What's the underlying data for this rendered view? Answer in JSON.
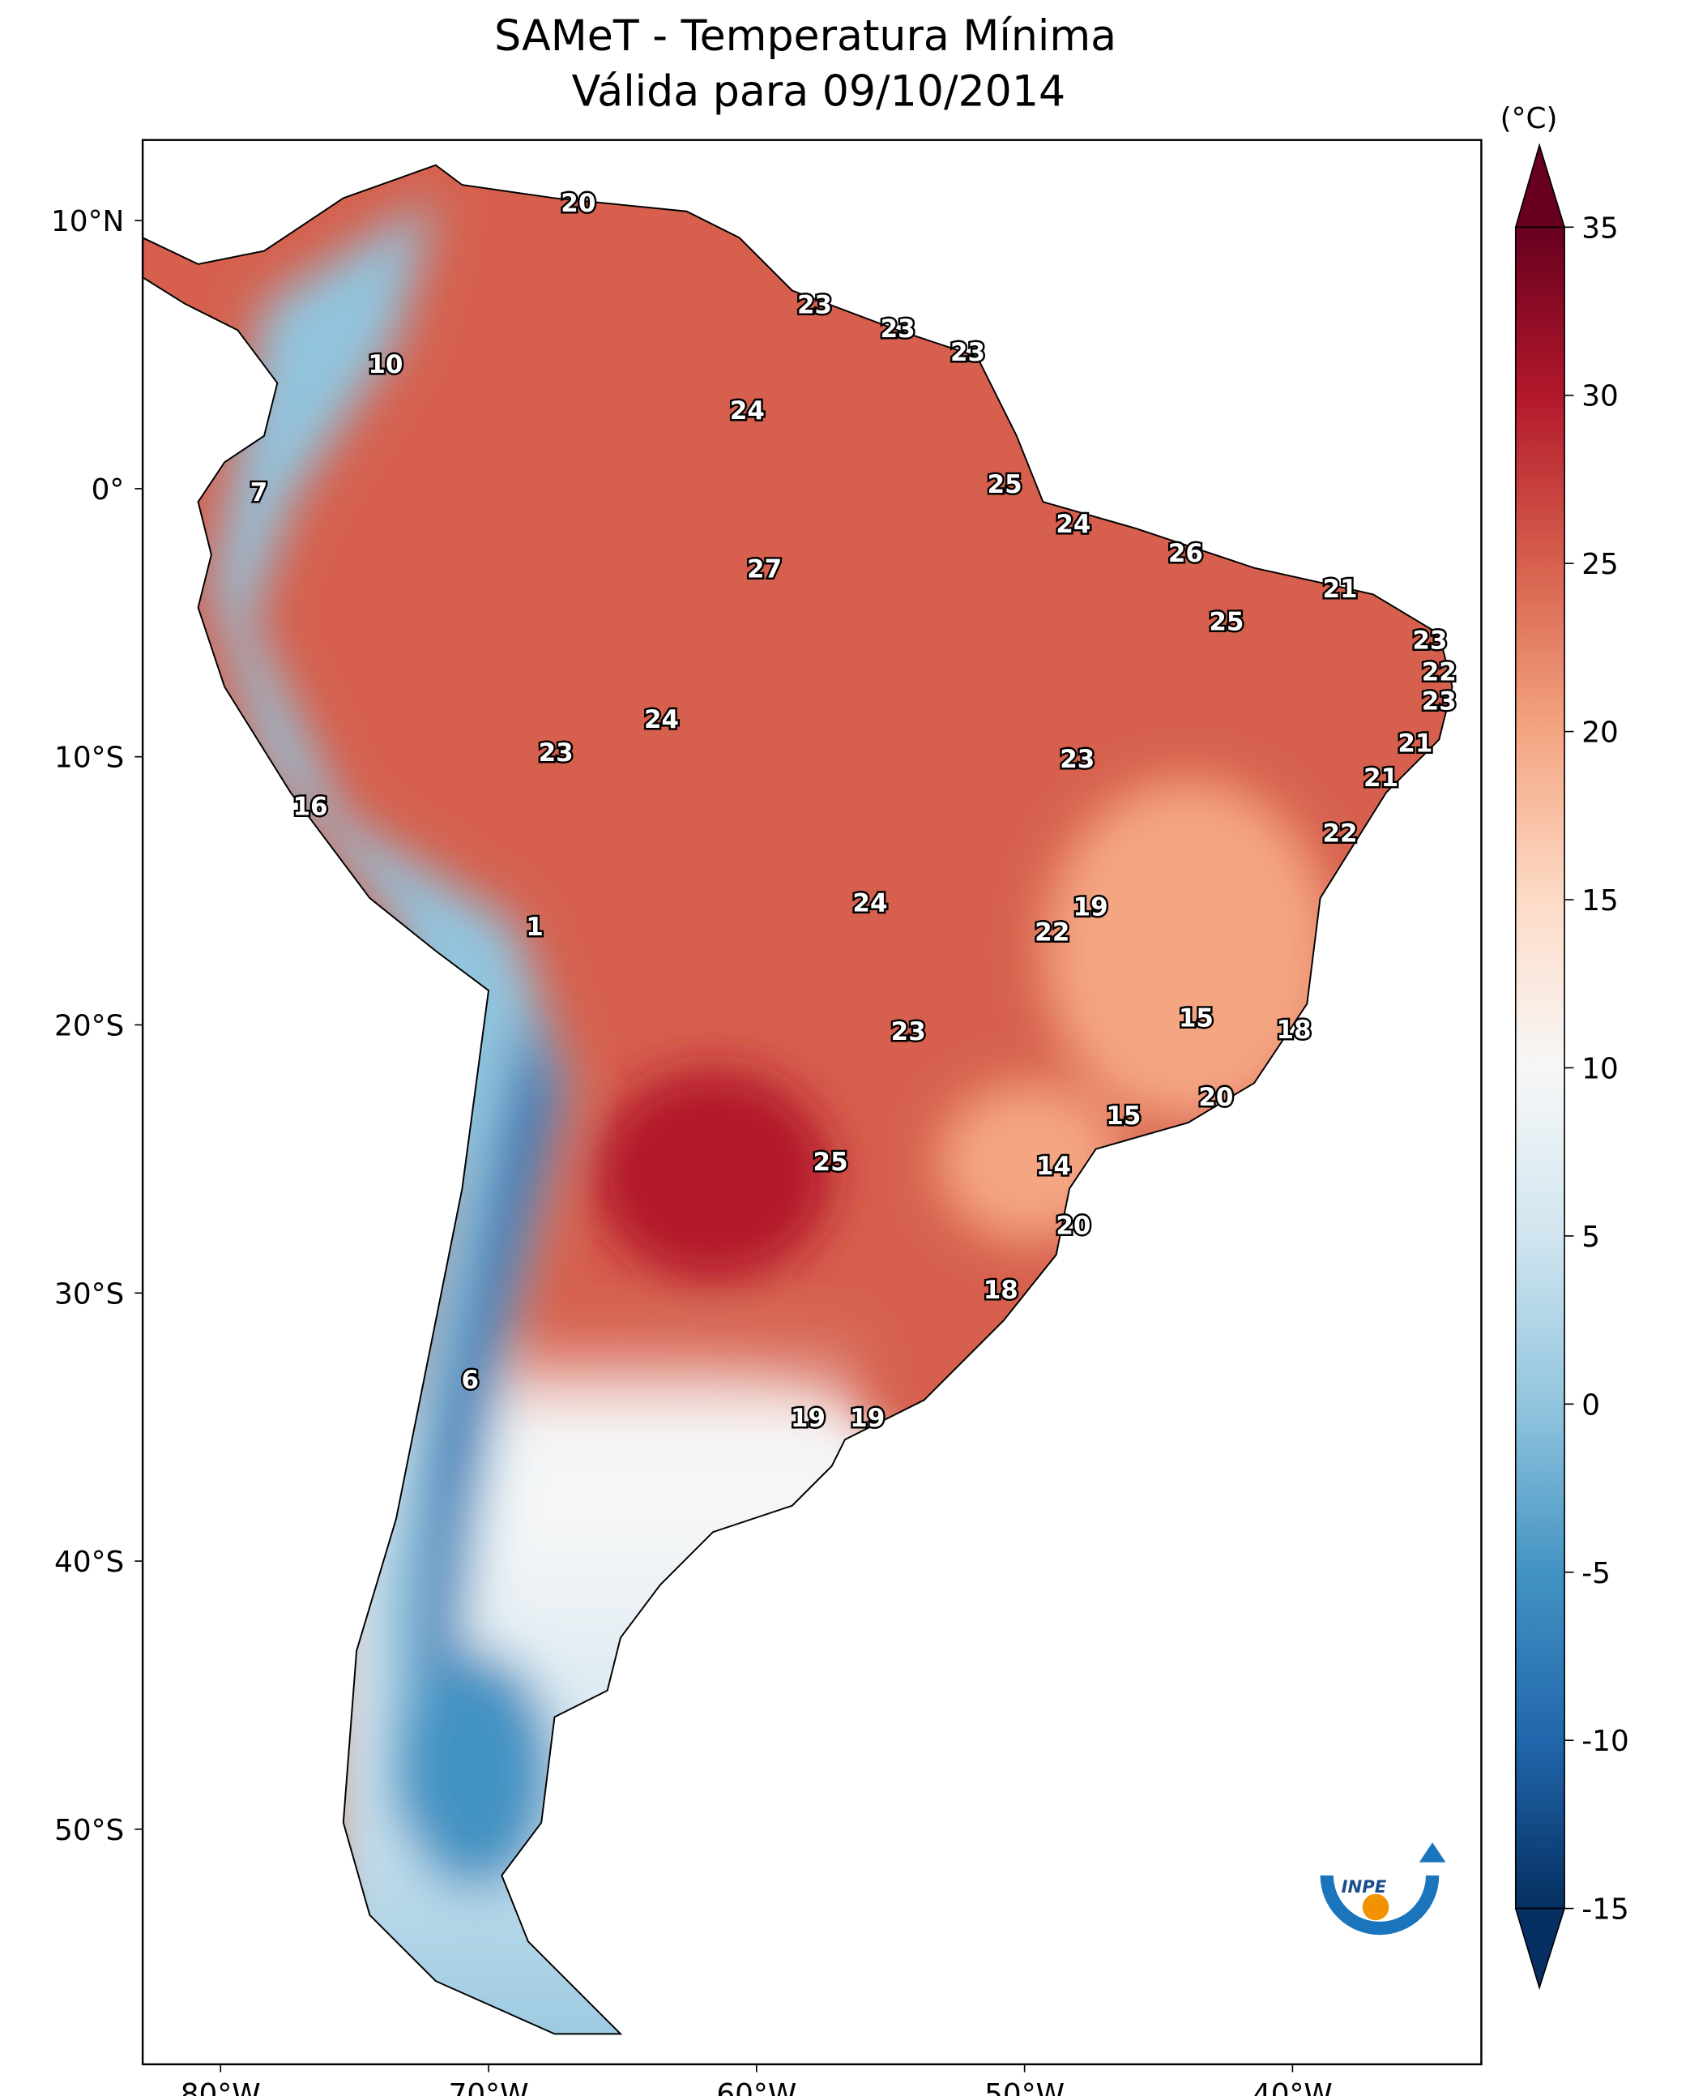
{
  "title": "SAMeT - Temperatura Mínima",
  "subtitle": "Válida para 09/10/2014",
  "logo": "INPE",
  "map": {
    "lat_ticks": [
      {
        "value": 10,
        "label": "10°N"
      },
      {
        "value": 0,
        "label": "0°"
      },
      {
        "value": -10,
        "label": "10°S"
      },
      {
        "value": -20,
        "label": "20°S"
      },
      {
        "value": -30,
        "label": "30°S"
      },
      {
        "value": -40,
        "label": "40°S"
      },
      {
        "value": -50,
        "label": "50°S"
      }
    ],
    "lon_ticks": [
      {
        "value": -80,
        "label": "80°W"
      },
      {
        "value": -70,
        "label": "70°W"
      },
      {
        "value": -60,
        "label": "60°W"
      },
      {
        "value": -50,
        "label": "50°W"
      },
      {
        "value": -40,
        "label": "40°W"
      }
    ],
    "station_values": [
      20,
      10,
      7,
      23,
      23,
      23,
      24,
      25,
      24,
      26,
      27,
      21,
      25,
      23,
      22,
      23,
      24,
      23,
      23,
      21,
      21,
      16,
      22,
      24,
      19,
      22,
      1,
      15,
      18,
      23,
      20,
      15,
      25,
      14,
      20,
      18,
      6,
      19,
      19
    ]
  },
  "colorbar": {
    "unit": "(°C)",
    "lim": [
      -15,
      35
    ],
    "ticks": [
      35,
      30,
      25,
      20,
      15,
      10,
      5,
      0,
      -5,
      -10,
      -15
    ],
    "colors": [
      "#053061",
      "#2166ac",
      "#4393c3",
      "#92c5de",
      "#d1e5f0",
      "#f7f7f7",
      "#fddbc7",
      "#f4a582",
      "#d6604d",
      "#b2182b",
      "#67001f"
    ]
  }
}
